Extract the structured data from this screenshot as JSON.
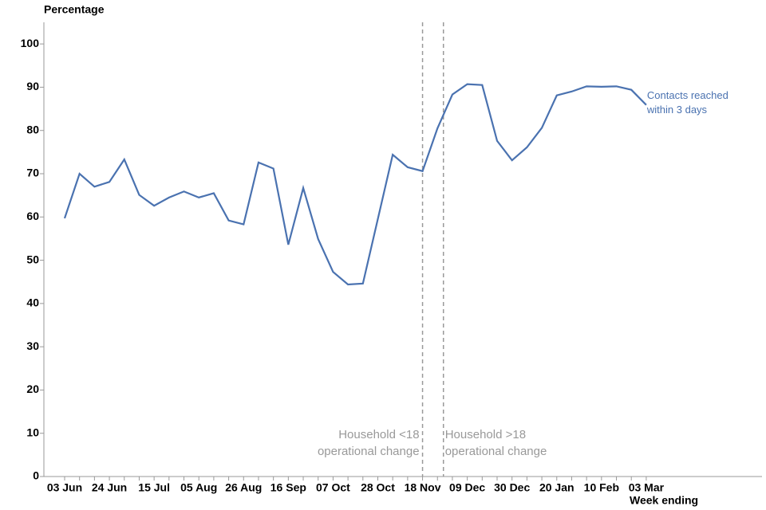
{
  "chart_data": {
    "type": "line",
    "y_label": "Percentage",
    "x_label": "Week ending",
    "categories": [
      "03 Jun",
      null,
      null,
      "24 Jun",
      null,
      null,
      "15 Jul",
      null,
      null,
      "05 Aug",
      null,
      null,
      "26 Aug",
      null,
      null,
      "16 Sep",
      null,
      null,
      "07 Oct",
      null,
      null,
      "28 Oct",
      null,
      null,
      "18 Nov",
      null,
      null,
      "09 Dec",
      null,
      null,
      "30 Dec",
      null,
      null,
      "20 Jan",
      null,
      null,
      "10 Feb",
      null,
      null,
      "03 Mar"
    ],
    "series": [
      {
        "label": [
          "Contacts reached",
          "within 3 days"
        ],
        "color": "#4a72b0",
        "values": [
          59.7,
          70,
          67,
          68.1,
          73.3,
          65.1,
          62.6,
          64.5,
          65.9,
          64.5,
          65.5,
          59.2,
          58.3,
          72.6,
          71.2,
          53.6,
          66.7,
          54.9,
          47.3,
          44.4,
          44.6,
          59.5,
          74.4,
          71.5,
          70.6,
          80.5,
          88.3,
          90.7,
          90.5,
          77.6,
          73.1,
          76.1,
          80.6,
          88.1,
          89,
          90.2,
          90.1,
          90.2,
          89.4,
          85.9
        ]
      }
    ],
    "vlines": [
      {
        "x": 24,
        "label": [
          "Household <18",
          "operational change"
        ],
        "side": "left"
      },
      {
        "x": 25.4,
        "label": [
          "Household >18",
          "operational change"
        ],
        "side": "right"
      }
    ],
    "ylim": [
      0,
      105
    ],
    "yticks": [
      0,
      10,
      20,
      30,
      40,
      50,
      60,
      70,
      80,
      90,
      100
    ],
    "grid": false
  }
}
